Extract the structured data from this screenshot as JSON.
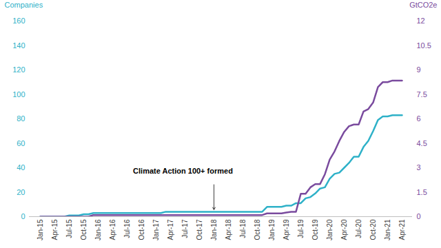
{
  "chart_data": {
    "type": "line",
    "categories": [
      "Jan-15",
      null,
      null,
      "Apr-15",
      null,
      null,
      "Jul-15",
      null,
      null,
      "Oct-15",
      null,
      null,
      "Jan-16",
      null,
      null,
      "Apr-16",
      null,
      null,
      "Jul-16",
      null,
      null,
      "Oct-16",
      null,
      null,
      "Jan-17",
      null,
      null,
      "Apr-17",
      null,
      null,
      "Jul-17",
      null,
      null,
      "Oct-17",
      null,
      null,
      "Jan-18",
      null,
      null,
      "Apr-18",
      null,
      null,
      "Jul-18",
      null,
      null,
      "Oct-18",
      null,
      null,
      "Jan-19",
      null,
      null,
      "Apr-19",
      null,
      null,
      "Jul-19",
      null,
      null,
      "Oct-19",
      null,
      null,
      "Jan-20",
      null,
      null,
      "Apr-20",
      null,
      null,
      "Jul-20",
      null,
      null,
      "Oct-20",
      null,
      null,
      "Jan-21",
      null,
      null,
      "Apr-21"
    ],
    "ylim": [
      0,
      160
    ],
    "yticks": [
      0,
      20,
      40,
      60,
      80,
      100,
      120,
      140,
      160
    ],
    "y2lim": [
      0,
      12
    ],
    "y2ticks": [
      0,
      1.5,
      3,
      4.5,
      6,
      7.5,
      9,
      10.5,
      12
    ],
    "series": [
      {
        "name": "Companies",
        "color": "#2eb1c8",
        "values": [
          0,
          0,
          0,
          0,
          0,
          0,
          1,
          1,
          1,
          2,
          2,
          3,
          3,
          3,
          3,
          3,
          3,
          3,
          3,
          3,
          3,
          3,
          3,
          3,
          3,
          3,
          4,
          4,
          4,
          4,
          4,
          4,
          4,
          4,
          4,
          4,
          4,
          4,
          4,
          4,
          4,
          4,
          4,
          4,
          4,
          4,
          4,
          8,
          8,
          8,
          8,
          9,
          9,
          11,
          11,
          15,
          16,
          19,
          23,
          24,
          31,
          35,
          36,
          40,
          44,
          49,
          49,
          57,
          62,
          70,
          79,
          82,
          82,
          83,
          83,
          83
        ]
      },
      {
        "name": "GtCO2e",
        "color": "#7a4b9e",
        "axis": "y2",
        "values": [
          0,
          0,
          0,
          0,
          0,
          0,
          0,
          0,
          0,
          0,
          0,
          0.1,
          0.1,
          0.1,
          0.1,
          0.1,
          0.1,
          0.1,
          0.1,
          0.1,
          0.1,
          0.1,
          0.1,
          0.1,
          0.1,
          0.1,
          0.1,
          0.1,
          0.1,
          0.1,
          0.1,
          0.1,
          0.1,
          0.1,
          0.1,
          0.1,
          0.1,
          0.1,
          0.1,
          0.1,
          0.1,
          0.1,
          0.1,
          0.1,
          0.1,
          0.1,
          0.1,
          0.2,
          0.2,
          0.2,
          0.2,
          0.25,
          0.3,
          0.3,
          1.4,
          1.4,
          1.8,
          2.0,
          2.0,
          2.6,
          3.5,
          4.0,
          4.65,
          5.2,
          5.55,
          5.65,
          5.65,
          6.45,
          6.6,
          7.0,
          7.95,
          8.25,
          8.25,
          8.35,
          8.35,
          8.35
        ]
      }
    ],
    "annotations": [
      {
        "text": "Climate Action 100+ formed",
        "x": "Jan-18"
      }
    ]
  }
}
